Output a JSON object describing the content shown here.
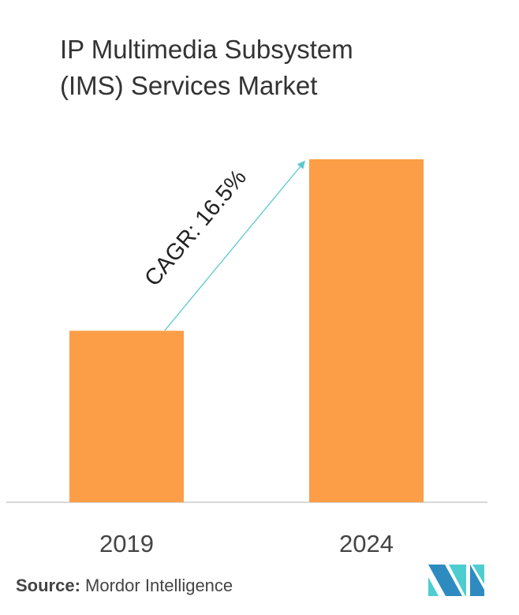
{
  "title_line1": "IP Multimedia Subsystem",
  "title_line2": "(IMS) Services Market",
  "source_label": "Source:",
  "source_text": "Mordor Intelligence",
  "logo_text": "MI",
  "colors": {
    "bar": "#FB9E47",
    "arrow": "#5BC8CE",
    "logo_dark": "#2E8BC0",
    "logo_light": "#4ECDD0"
  },
  "chart_data": {
    "type": "bar",
    "title": "IP Multimedia Subsystem (IMS) Services Market",
    "categories": [
      "2019",
      "2024"
    ],
    "values": [
      1.0,
      2.0
    ],
    "xlabel": "",
    "ylabel": "",
    "ylim": [
      0,
      2.0
    ],
    "grid": false,
    "annotation": "CAGR: 16.5%"
  }
}
